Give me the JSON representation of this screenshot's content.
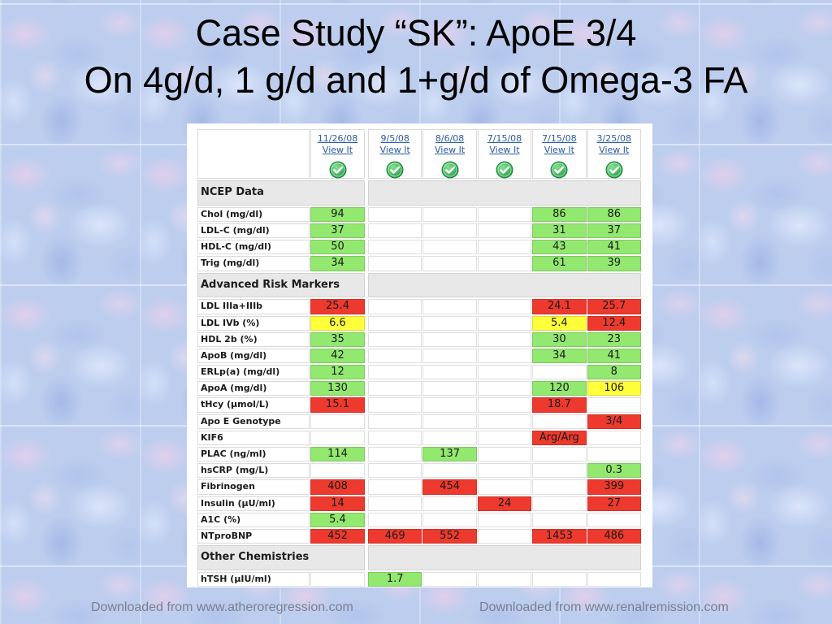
{
  "slide": {
    "title_line1": "Case Study “SK”: ApoE 3/4",
    "title_line2": "On 4g/d, 1 g/d and 1+g/d of Omega-3 FA",
    "footer_left": "Downloaded from www.atheroregression.com",
    "footer_right": "Downloaded from www.renalremission.com"
  },
  "colors": {
    "green": "#93e870",
    "red": "#ee3a2e",
    "yellow": "#ffff3a",
    "link": "#2b5aa3",
    "section_bg": "#e8e8e8"
  },
  "results_table": {
    "columns": [
      {
        "date": "11/26/08",
        "view_label": "View It",
        "icon": "check-circle-icon"
      },
      {
        "date": "9/5/08",
        "view_label": "View It",
        "icon": "check-circle-icon"
      },
      {
        "date": "8/6/08",
        "view_label": "View It",
        "icon": "check-circle-icon"
      },
      {
        "date": "7/15/08",
        "view_label": "View It",
        "icon": "check-circle-icon"
      },
      {
        "date": "7/15/08",
        "view_label": "View It",
        "icon": "check-circle-icon"
      },
      {
        "date": "3/25/08",
        "view_label": "View It",
        "icon": "check-circle-icon"
      }
    ],
    "sections": [
      {
        "title": "NCEP Data",
        "rows": [
          {
            "label": "Chol (mg/dl)",
            "cells": [
              {
                "value": "94",
                "color": "green"
              },
              null,
              null,
              null,
              {
                "value": "86",
                "color": "green"
              },
              {
                "value": "86",
                "color": "green"
              }
            ]
          },
          {
            "label": "LDL-C (mg/dl)",
            "cells": [
              {
                "value": "37",
                "color": "green"
              },
              null,
              null,
              null,
              {
                "value": "31",
                "color": "green"
              },
              {
                "value": "37",
                "color": "green"
              }
            ]
          },
          {
            "label": "HDL-C (mg/dl)",
            "cells": [
              {
                "value": "50",
                "color": "green"
              },
              null,
              null,
              null,
              {
                "value": "43",
                "color": "green"
              },
              {
                "value": "41",
                "color": "green"
              }
            ]
          },
          {
            "label": "Trig (mg/dl)",
            "cells": [
              {
                "value": "34",
                "color": "green"
              },
              null,
              null,
              null,
              {
                "value": "61",
                "color": "green"
              },
              {
                "value": "39",
                "color": "green"
              }
            ]
          }
        ]
      },
      {
        "title": "Advanced Risk Markers",
        "rows": [
          {
            "label": "LDL IIIa+IIIb",
            "cells": [
              {
                "value": "25.4",
                "color": "red"
              },
              null,
              null,
              null,
              {
                "value": "24.1",
                "color": "red"
              },
              {
                "value": "25.7",
                "color": "red"
              }
            ]
          },
          {
            "label": "LDL IVb (%)",
            "cells": [
              {
                "value": "6.6",
                "color": "yellow"
              },
              null,
              null,
              null,
              {
                "value": "5.4",
                "color": "yellow"
              },
              {
                "value": "12.4",
                "color": "red"
              }
            ]
          },
          {
            "label": "HDL 2b (%)",
            "cells": [
              {
                "value": "35",
                "color": "green"
              },
              null,
              null,
              null,
              {
                "value": "30",
                "color": "green"
              },
              {
                "value": "23",
                "color": "green"
              }
            ]
          },
          {
            "label": "ApoB (mg/dl)",
            "cells": [
              {
                "value": "42",
                "color": "green"
              },
              null,
              null,
              null,
              {
                "value": "34",
                "color": "green"
              },
              {
                "value": "41",
                "color": "green"
              }
            ]
          },
          {
            "label": "ERLp(a) (mg/dl)",
            "cells": [
              {
                "value": "12",
                "color": "green"
              },
              null,
              null,
              null,
              null,
              {
                "value": "8",
                "color": "green"
              }
            ]
          },
          {
            "label": "ApoA (mg/dl)",
            "cells": [
              {
                "value": "130",
                "color": "green"
              },
              null,
              null,
              null,
              {
                "value": "120",
                "color": "green"
              },
              {
                "value": "106",
                "color": "yellow"
              }
            ]
          },
          {
            "label": "tHcy (µmol/L)",
            "cells": [
              {
                "value": "15.1",
                "color": "red"
              },
              null,
              null,
              null,
              {
                "value": "18.7",
                "color": "red"
              },
              null
            ]
          },
          {
            "label": "Apo E Genotype",
            "cells": [
              null,
              null,
              null,
              null,
              null,
              {
                "value": "3/4",
                "color": "red"
              }
            ]
          },
          {
            "label": "KIF6",
            "cells": [
              null,
              null,
              null,
              null,
              {
                "value": "Arg/Arg",
                "color": "red"
              },
              null
            ]
          },
          {
            "label": "PLAC (ng/ml)",
            "cells": [
              {
                "value": "114",
                "color": "green"
              },
              null,
              {
                "value": "137",
                "color": "green"
              },
              null,
              null,
              null
            ]
          },
          {
            "label": "hsCRP (mg/L)",
            "cells": [
              null,
              null,
              null,
              null,
              null,
              {
                "value": "0.3",
                "color": "green"
              }
            ]
          },
          {
            "label": "Fibrinogen",
            "cells": [
              {
                "value": "408",
                "color": "red"
              },
              null,
              {
                "value": "454",
                "color": "red"
              },
              null,
              null,
              {
                "value": "399",
                "color": "red"
              }
            ]
          },
          {
            "label": "Insulin (µU/ml)",
            "cells": [
              {
                "value": "14",
                "color": "red"
              },
              null,
              null,
              {
                "value": "24",
                "color": "red"
              },
              null,
              {
                "value": "27",
                "color": "red"
              }
            ]
          },
          {
            "label": "A1C (%)",
            "cells": [
              {
                "value": "5.4",
                "color": "green"
              },
              null,
              null,
              null,
              null,
              null
            ]
          },
          {
            "label": "NTproBNP",
            "cells": [
              {
                "value": "452",
                "color": "red"
              },
              {
                "value": "469",
                "color": "red"
              },
              {
                "value": "552",
                "color": "red"
              },
              null,
              {
                "value": "1453",
                "color": "red"
              },
              {
                "value": "486",
                "color": "red"
              }
            ]
          }
        ]
      },
      {
        "title": "Other Chemistries",
        "rows": [
          {
            "label": "hTSH (µIU/ml)",
            "cells": [
              null,
              {
                "value": "1.7",
                "color": "green"
              },
              null,
              null,
              null,
              null
            ]
          }
        ]
      }
    ]
  }
}
